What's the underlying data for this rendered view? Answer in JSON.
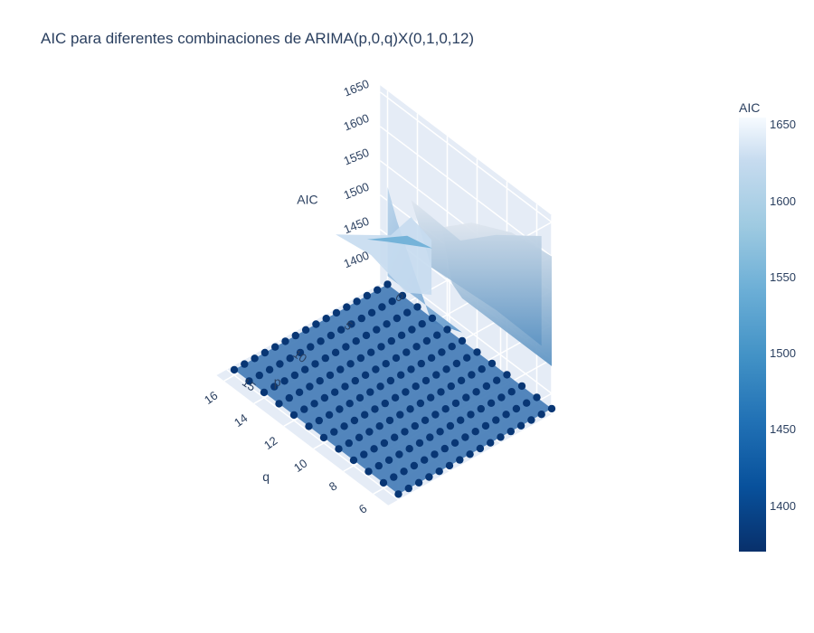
{
  "chart_data": {
    "type": "surface",
    "title": "AIC para diferentes combinaciones de ARIMA(p,0,q)X(0,1,0,12)",
    "x_axis": {
      "label": "p",
      "ticks": [
        "0",
        "5",
        "10",
        "15"
      ]
    },
    "y_axis": {
      "label": "q",
      "ticks": [
        "6",
        "8",
        "10",
        "12",
        "14",
        "16"
      ]
    },
    "z_axis": {
      "label": "AIC",
      "ticks": [
        "1400",
        "1450",
        "1500",
        "1550",
        "1600",
        "1650"
      ],
      "range": [
        1370,
        1660
      ]
    },
    "colorscale": "Blues",
    "colorbar": {
      "title": "AIC",
      "ticks": [
        "1650",
        "1600",
        "1550",
        "1500",
        "1450",
        "1400"
      ],
      "range": [
        1370,
        1655
      ]
    },
    "grid": true,
    "legend": "colorbar-right",
    "p_values": [
      0,
      1,
      2,
      3,
      4,
      5,
      6,
      7,
      8,
      9,
      10,
      11,
      12,
      13,
      14,
      15
    ],
    "q_values": [
      5,
      6,
      7,
      8,
      9,
      10,
      11,
      12,
      13,
      14,
      15,
      16
    ],
    "aic_rows_by_q": [
      [
        1378,
        1378,
        1378,
        1378,
        1378,
        1378,
        1378,
        1378,
        1378,
        1378,
        1378,
        1378,
        1378,
        1378,
        1378,
        1378
      ],
      [
        1378,
        1378,
        1378,
        1378,
        1378,
        1378,
        1378,
        1378,
        1378,
        1378,
        1378,
        1378,
        1378,
        1378,
        1378,
        1378
      ],
      [
        1378,
        1378,
        1378,
        1378,
        1378,
        1378,
        1378,
        1378,
        1378,
        1378,
        1378,
        1378,
        1378,
        1378,
        1378,
        1378
      ],
      [
        1378,
        1378,
        1378,
        1378,
        1378,
        1378,
        1378,
        1378,
        1378,
        1378,
        1378,
        1378,
        1378,
        1378,
        1378,
        1378
      ],
      [
        1378,
        1378,
        1378,
        1378,
        1378,
        1378,
        1378,
        1378,
        1378,
        1378,
        1378,
        1378,
        1378,
        1378,
        1378,
        1378
      ],
      [
        1378,
        1378,
        1378,
        1378,
        1378,
        1378,
        1378,
        1378,
        1378,
        1378,
        1378,
        1378,
        1378,
        1378,
        1378,
        1378
      ],
      [
        1378,
        1378,
        1378,
        1378,
        1378,
        1378,
        1378,
        1378,
        1378,
        1378,
        1378,
        1378,
        1378,
        1378,
        1378,
        1378
      ],
      [
        1378,
        1378,
        1378,
        1378,
        1378,
        1378,
        1378,
        1378,
        1378,
        1378,
        1378,
        1378,
        1378,
        1378,
        1378,
        1378
      ],
      [
        1378,
        1378,
        1378,
        1378,
        1378,
        1378,
        1378,
        1378,
        1378,
        1378,
        1378,
        1378,
        1378,
        1378,
        1378,
        1378
      ],
      [
        1378,
        1378,
        1378,
        1378,
        1378,
        1378,
        1378,
        1378,
        1378,
        1378,
        1378,
        1378,
        1378,
        1378,
        1378,
        1378
      ],
      [
        1378,
        1378,
        1378,
        1378,
        1378,
        1378,
        1378,
        1378,
        1378,
        1378,
        1378,
        1378,
        1378,
        1378,
        1378,
        1378
      ],
      [
        1378,
        1378,
        1378,
        1378,
        1378,
        1378,
        1378,
        1378,
        1378,
        1378,
        1378,
        1378,
        1378,
        1378,
        1378,
        1378
      ]
    ]
  }
}
